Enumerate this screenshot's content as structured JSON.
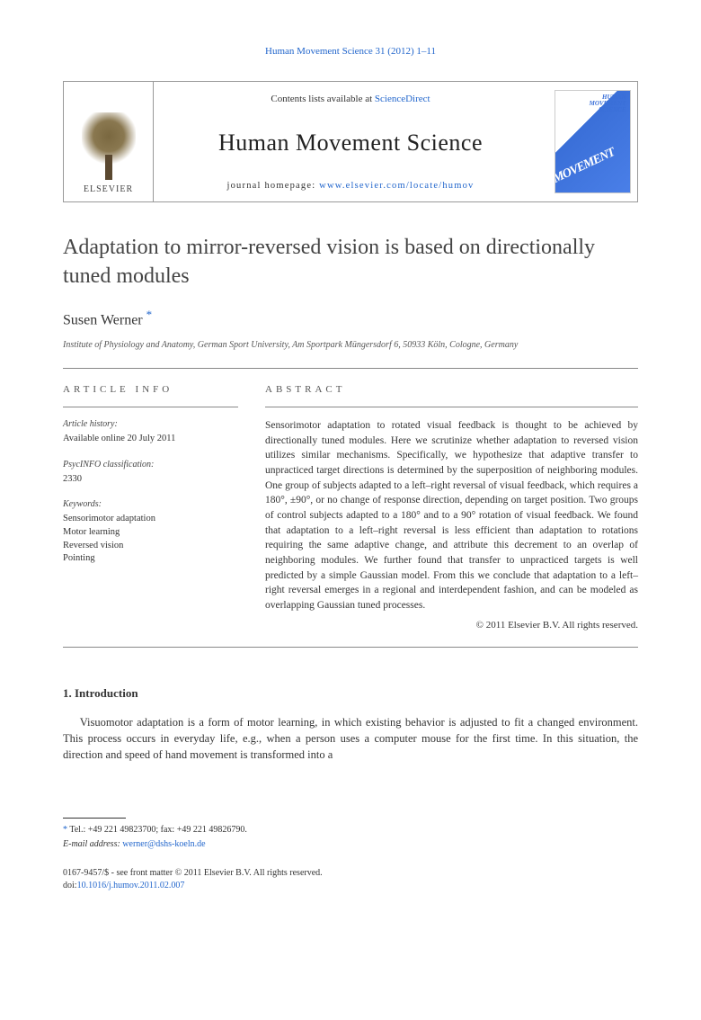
{
  "colors": {
    "link": "#2266cc",
    "text": "#333333",
    "rule": "#888888"
  },
  "header": {
    "journal_ref_prefix": "Human Movement Science 31 (2012) 1–11"
  },
  "masthead": {
    "contents_prefix": "Contents lists available at ",
    "contents_link": "ScienceDirect",
    "journal_title": "Human Movement Science",
    "homepage_prefix": "journal homepage: ",
    "homepage_url": "www.elsevier.com/locate/humov",
    "publisher_label": "ELSEVIER"
  },
  "article": {
    "title": "Adaptation to mirror-reversed vision is based on directionally tuned modules",
    "author": "Susen Werner",
    "author_marker": "*",
    "affiliation": "Institute of Physiology and Anatomy, German Sport University, Am Sportpark Müngersdorf 6, 50933 Köln, Cologne, Germany"
  },
  "info": {
    "heading": "ARTICLE INFO",
    "history_label": "Article history:",
    "history_value": "Available online 20 July 2011",
    "psycinfo_label": "PsycINFO classification:",
    "psycinfo_value": "2330",
    "keywords_label": "Keywords:",
    "keywords": [
      "Sensorimotor adaptation",
      "Motor learning",
      "Reversed vision",
      "Pointing"
    ]
  },
  "abstract": {
    "heading": "ABSTRACT",
    "text": "Sensorimotor adaptation to rotated visual feedback is thought to be achieved by directionally tuned modules. Here we scrutinize whether adaptation to reversed vision utilizes similar mechanisms. Specifically, we hypothesize that adaptive transfer to unpracticed target directions is determined by the superposition of neighboring modules. One group of subjects adapted to a left–right reversal of visual feedback, which requires a 180°, ±90°, or no change of response direction, depending on target position. Two groups of control subjects adapted to a 180° and to a 90° rotation of visual feedback. We found that adaptation to a left–right reversal is less efficient than adaptation to rotations requiring the same adaptive change, and attribute this decrement to an overlap of neighboring modules. We further found that transfer to unpracticed targets is well predicted by a simple Gaussian model. From this we conclude that adaptation to a left–right reversal emerges in a regional and interdependent fashion, and can be modeled as overlapping Gaussian tuned processes.",
    "copyright": "© 2011 Elsevier B.V. All rights reserved."
  },
  "body": {
    "section1_heading": "1. Introduction",
    "para1": "Visuomotor adaptation is a form of motor learning, in which existing behavior is adjusted to fit a changed environment. This process occurs in everyday life, e.g., when a person uses a computer mouse for the first time. In this situation, the direction and speed of hand movement is transformed into a"
  },
  "footnotes": {
    "corr_marker": "*",
    "corr_text": " Tel.: +49 221 49823700; fax: +49 221 49826790.",
    "email_label": "E-mail address: ",
    "email": "werner@dshs-koeln.de"
  },
  "footer": {
    "issn_line": "0167-9457/$ - see front matter © 2011 Elsevier B.V. All rights reserved.",
    "doi_label": "doi:",
    "doi": "10.1016/j.humov.2011.02.007"
  }
}
